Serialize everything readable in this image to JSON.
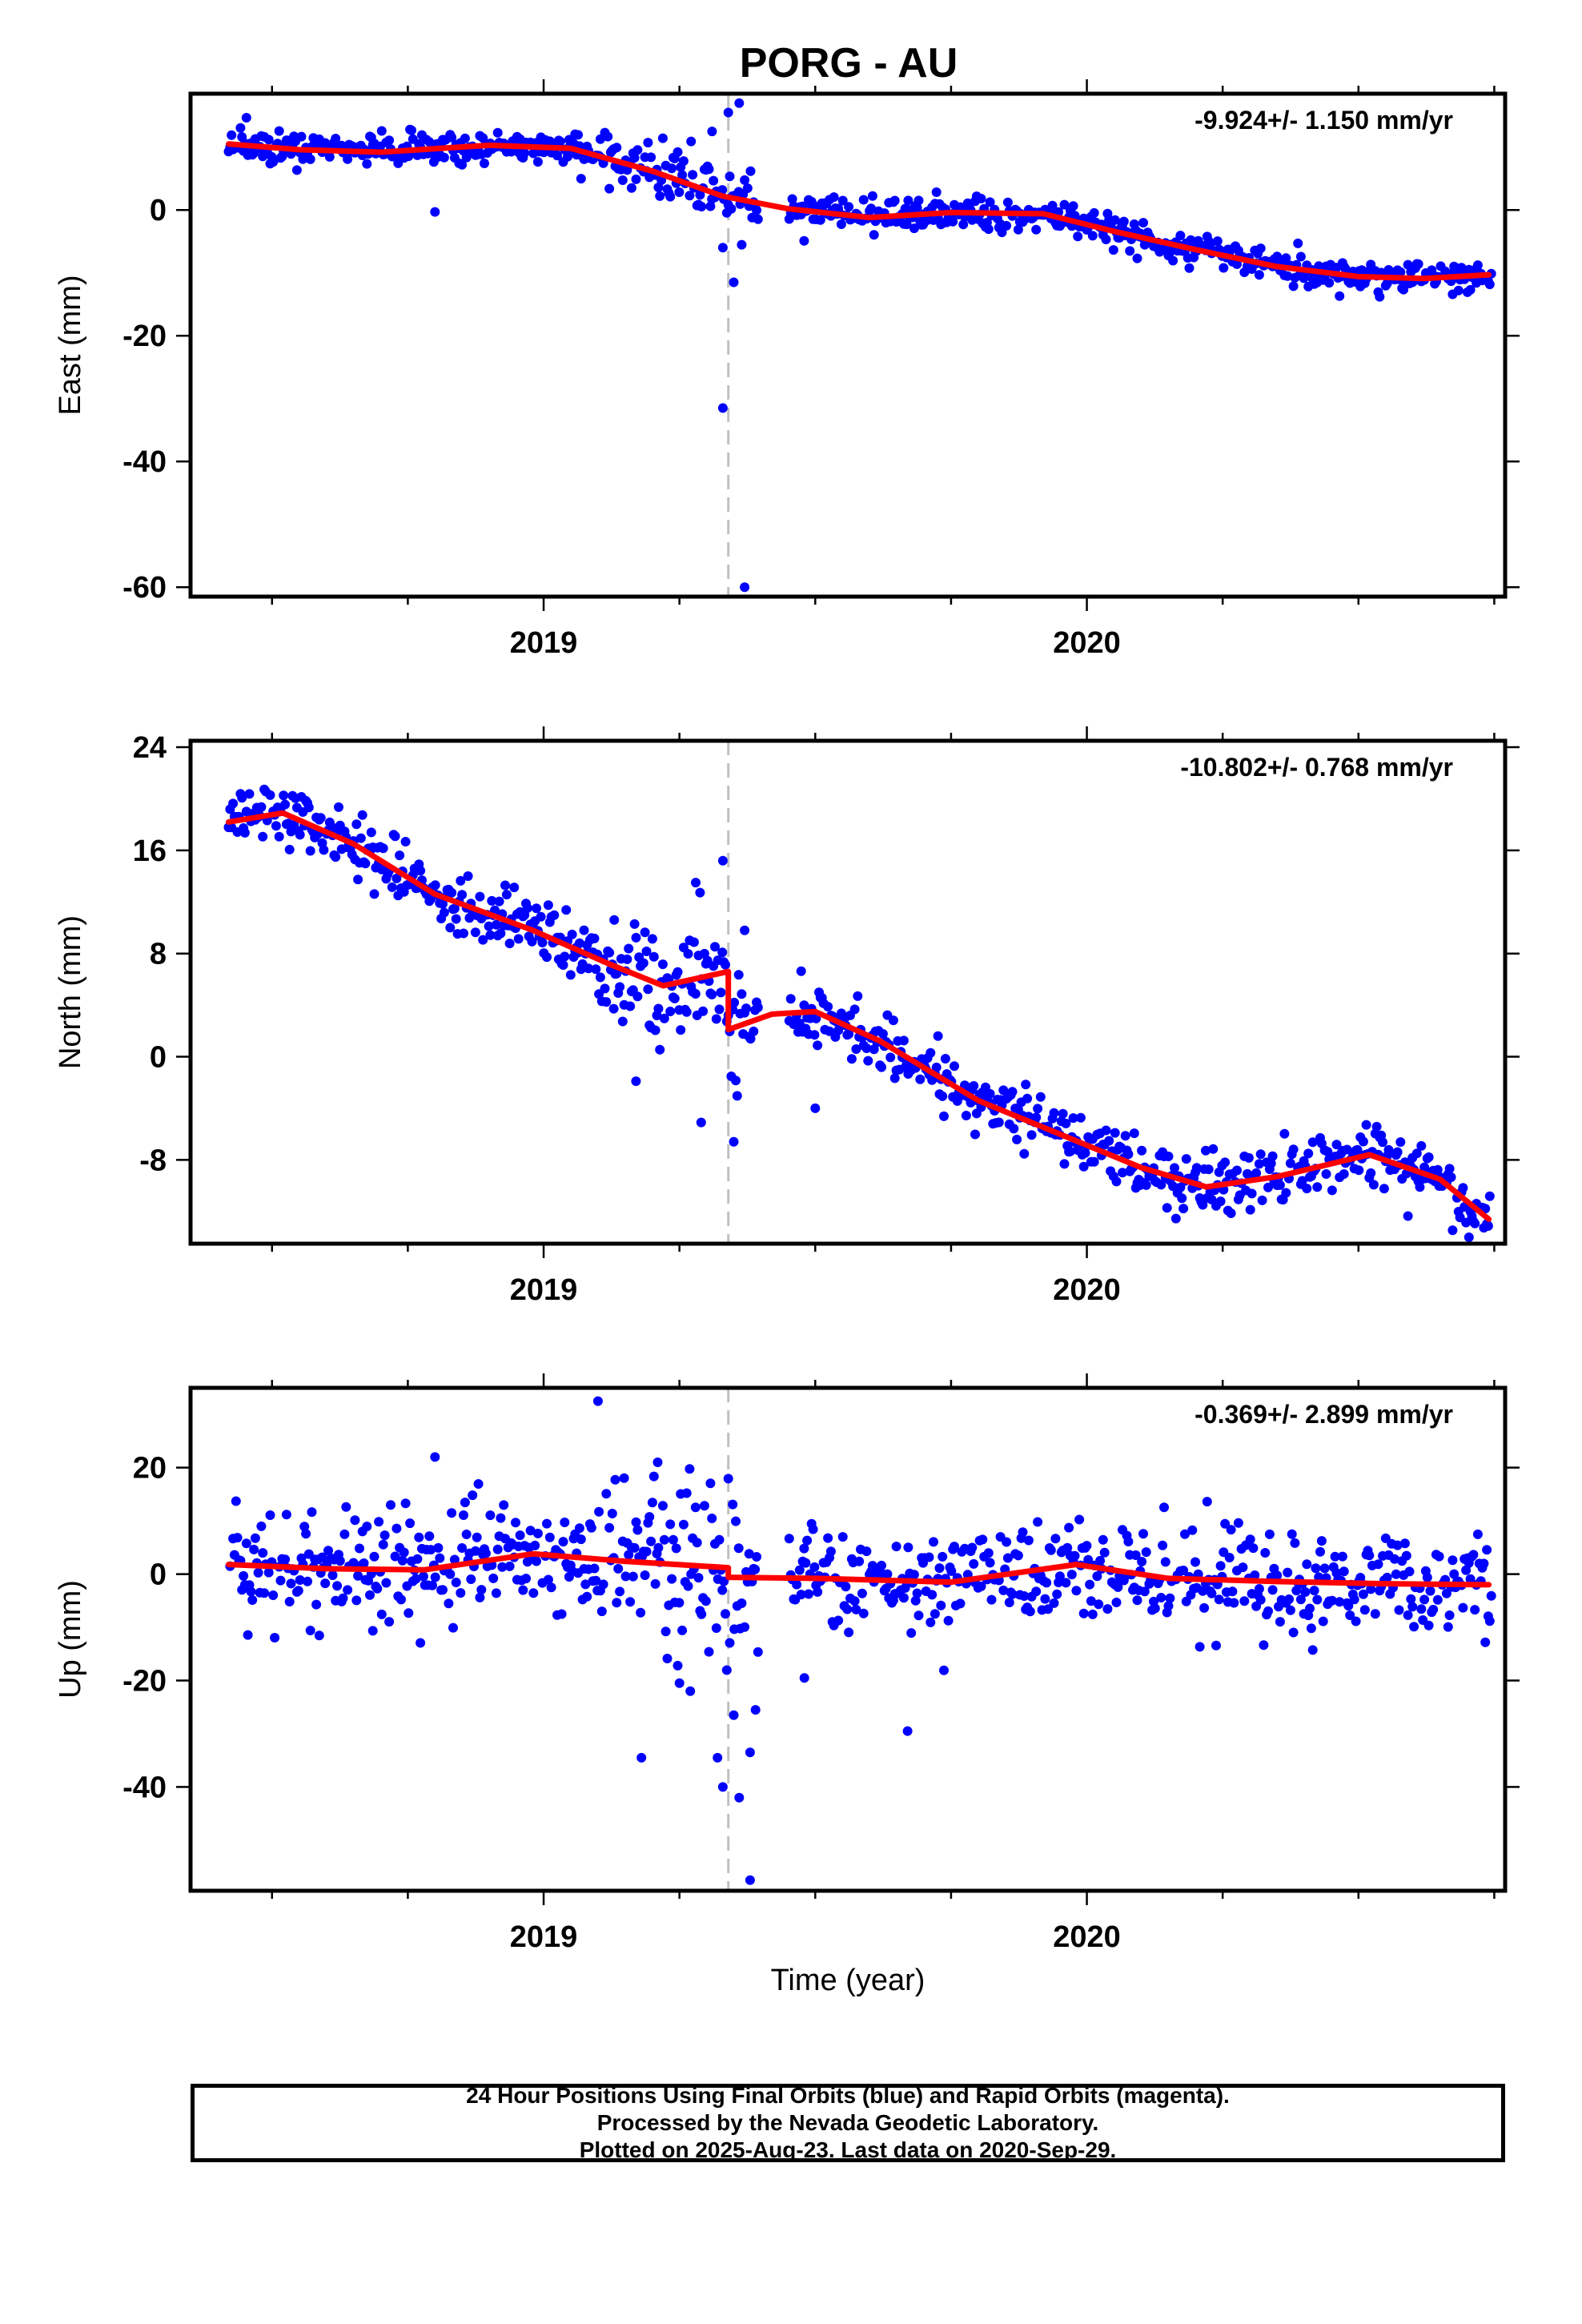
{
  "title": "PORG - AU",
  "xlabel": "Time (year)",
  "caption": {
    "line1": "24 Hour Positions Using Final Orbits (blue) and Rapid Orbits (magenta).",
    "line2": "Processed by the Nevada Geodetic Laboratory.",
    "line3": "Plotted on 2025-Aug-23. Last data on 2020-Sep-29."
  },
  "colors": {
    "points": "#0000ff",
    "fit": "#ff0000",
    "offset_line": "#c0c0c0",
    "frame": "#000000"
  },
  "chart_data": [
    {
      "type": "scatter",
      "component": "East",
      "ylabel": "East (mm)",
      "rate_label": "-9.924+/- 1.150 mm/yr",
      "xlim": [
        2018.35,
        2020.77
      ],
      "ylim": [
        -61.5,
        18.5
      ],
      "x_ticks": [
        2019,
        2020
      ],
      "y_ticks": [
        -60,
        -40,
        -20,
        0
      ],
      "offset_epoch": 2019.34,
      "fit_knots": {
        "x": [
          2018.42,
          2018.55,
          2018.7,
          2018.9,
          2019.05,
          2019.2,
          2019.33,
          2019.45,
          2019.6,
          2019.75,
          2019.92,
          2020.05,
          2020.2,
          2020.35,
          2020.5,
          2020.62,
          2020.74
        ],
        "y": [
          10.5,
          9.6,
          9.2,
          10.3,
          9.8,
          6.2,
          2.2,
          0.2,
          -1.2,
          -0.4,
          -0.6,
          -3.4,
          -6.3,
          -9.0,
          -10.6,
          -10.9,
          -10.3
        ]
      },
      "scatter_sd": 1.3,
      "outliers": [
        {
          "x": 2018.8,
          "y": -0.3
        },
        {
          "x": 2019.33,
          "y": -31.5
        },
        {
          "x": 2019.37,
          "y": -60.0
        },
        {
          "x": 2019.35,
          "y": -11.5
        },
        {
          "x": 2019.36,
          "y": 17.0
        },
        {
          "x": 2019.34,
          "y": 15.5
        },
        {
          "x": 2019.33,
          "y": -6.0
        },
        {
          "x": 2019.31,
          "y": 12.5
        }
      ]
    },
    {
      "type": "scatter",
      "component": "North",
      "ylabel": "North (mm)",
      "rate_label": "-10.802+/- 0.768 mm/yr",
      "xlim": [
        2018.35,
        2020.77
      ],
      "ylim": [
        -14.5,
        24.5
      ],
      "x_ticks": [
        2019,
        2020
      ],
      "y_ticks": [
        -8,
        0,
        8,
        16,
        24
      ],
      "offset_epoch": 2019.34,
      "fit_knots": {
        "x": [
          2018.42,
          2018.52,
          2018.65,
          2018.8,
          2018.98,
          2019.12,
          2019.22,
          2019.34,
          2019.34,
          2019.42,
          2019.5,
          2019.62,
          2019.8,
          2019.95,
          2020.1,
          2020.22,
          2020.35,
          2020.52,
          2020.65,
          2020.74
        ],
        "y": [
          18.2,
          18.9,
          16.5,
          12.6,
          9.8,
          7.2,
          5.5,
          6.6,
          2.1,
          3.3,
          3.5,
          1.2,
          -3.4,
          -6.0,
          -8.6,
          -10.1,
          -9.3,
          -7.6,
          -9.5,
          -12.6
        ]
      },
      "scatter_sd": 1.2,
      "outliers": [
        {
          "x": 2019.28,
          "y": 13.5
        },
        {
          "x": 2019.33,
          "y": 15.2
        },
        {
          "x": 2019.37,
          "y": 9.8
        },
        {
          "x": 2019.35,
          "y": -6.6
        },
        {
          "x": 2019.29,
          "y": -5.1
        },
        {
          "x": 2019.5,
          "y": -4.0
        },
        {
          "x": 2019.17,
          "y": -1.9
        },
        {
          "x": 2019.13,
          "y": 10.6
        }
      ]
    },
    {
      "type": "scatter",
      "component": "Up",
      "ylabel": "Up (mm)",
      "rate_label": "-0.369+/- 2.899 mm/yr",
      "xlim": [
        2018.35,
        2020.77
      ],
      "ylim": [
        -59.5,
        35.0
      ],
      "x_ticks": [
        2019,
        2020
      ],
      "y_ticks": [
        -40,
        -20,
        0,
        20
      ],
      "offset_epoch": 2019.34,
      "fit_knots": {
        "x": [
          2018.42,
          2018.6,
          2018.78,
          2018.98,
          2019.15,
          2019.34,
          2019.34,
          2019.5,
          2019.75,
          2019.98,
          2020.15,
          2020.35,
          2020.55,
          2020.74
        ],
        "y": [
          1.8,
          1.0,
          0.8,
          3.8,
          2.4,
          1.2,
          -0.6,
          -0.8,
          -1.5,
          1.8,
          -0.8,
          -1.4,
          -1.8,
          -2.0
        ]
      },
      "scatter_sd": 4.8,
      "outliers": [
        {
          "x": 2019.1,
          "y": 32.5
        },
        {
          "x": 2018.8,
          "y": 22.0
        },
        {
          "x": 2019.21,
          "y": 21.0
        },
        {
          "x": 2019.18,
          "y": -34.5
        },
        {
          "x": 2019.32,
          "y": -34.5
        },
        {
          "x": 2019.33,
          "y": -40.0
        },
        {
          "x": 2019.36,
          "y": -42.0
        },
        {
          "x": 2019.38,
          "y": -57.5
        },
        {
          "x": 2019.38,
          "y": -33.5
        },
        {
          "x": 2019.39,
          "y": -25.5
        },
        {
          "x": 2019.35,
          "y": -26.5
        },
        {
          "x": 2019.48,
          "y": -19.5
        },
        {
          "x": 2019.67,
          "y": -29.5
        },
        {
          "x": 2019.27,
          "y": -22.0
        },
        {
          "x": 2019.25,
          "y": -20.5
        }
      ]
    }
  ]
}
